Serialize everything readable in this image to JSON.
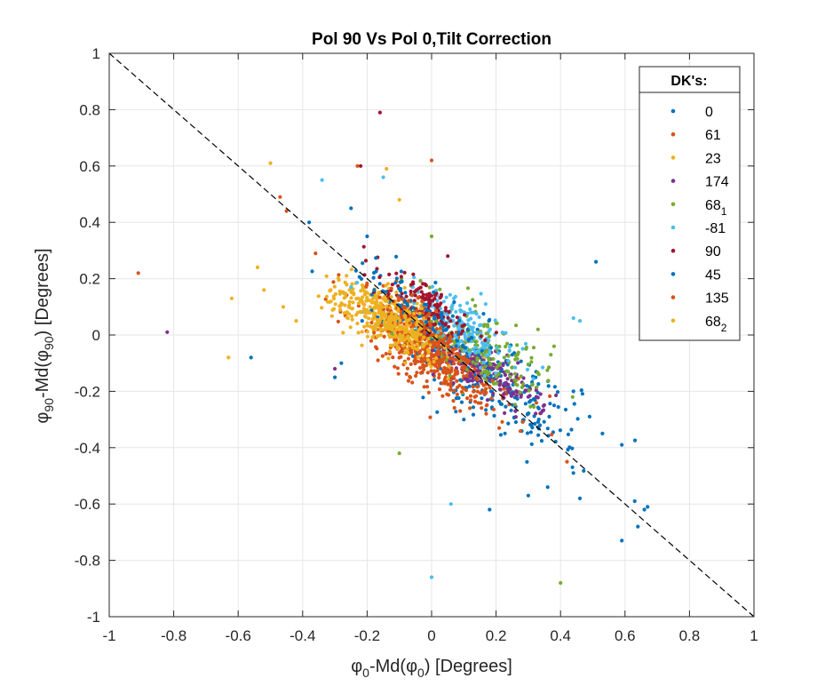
{
  "chart_data": {
    "type": "scatter",
    "title": "Pol 90 Vs Pol 0,Tilt Correction",
    "xlabel": {
      "base": "φ",
      "sub": "0",
      "rest": "-Md(φ",
      "sub2": "0",
      "tail": ") [Degrees]"
    },
    "ylabel": {
      "base": "φ",
      "sub": "90",
      "rest": "-Md(φ",
      "sub2": "90",
      "tail": ") [Degrees]"
    },
    "xlim": [
      -1,
      1
    ],
    "ylim": [
      -1,
      1
    ],
    "xticks": [
      "-1",
      "-0.8",
      "-0.6",
      "-0.4",
      "-0.2",
      "0",
      "0.2",
      "0.4",
      "0.6",
      "0.8",
      "1"
    ],
    "yticks": [
      "-1",
      "-0.8",
      "-0.6",
      "-0.4",
      "-0.2",
      "0",
      "0.2",
      "0.4",
      "0.6",
      "0.8",
      "1"
    ],
    "grid": true,
    "reference_line": {
      "style": "dashed",
      "color": "#000000",
      "x": [
        -1,
        1
      ],
      "y": [
        1,
        -1
      ]
    },
    "legend": {
      "title": "DK's:",
      "placement": "top-right",
      "entries": [
        {
          "label": "0",
          "sub": "",
          "color": "#0072BD"
        },
        {
          "label": "61",
          "sub": "",
          "color": "#D95319"
        },
        {
          "label": "23",
          "sub": "",
          "color": "#EDB120"
        },
        {
          "label": "174",
          "sub": "",
          "color": "#7E2F8E"
        },
        {
          "label": "68",
          "sub": "1",
          "color": "#77AC30"
        },
        {
          "label": "-81",
          "sub": "",
          "color": "#4DBEEE"
        },
        {
          "label": "90",
          "sub": "",
          "color": "#A2142F"
        },
        {
          "label": "45",
          "sub": "",
          "color": "#0072BD"
        },
        {
          "label": "135",
          "sub": "",
          "color": "#D95319"
        },
        {
          "label": "68",
          "sub": "2",
          "color": "#EDB120"
        }
      ]
    },
    "series": [
      {
        "color": "#0072BD",
        "center": [
          0.18,
          -0.16
        ],
        "spread": [
          0.14,
          0.12
        ],
        "count": 260,
        "points": [
          [
            0.59,
            -0.73
          ],
          [
            0.66,
            -0.62
          ],
          [
            0.63,
            -0.59
          ],
          [
            0.67,
            -0.61
          ],
          [
            0.64,
            -0.68
          ],
          [
            0.51,
            0.26
          ],
          [
            -0.56,
            -0.08
          ],
          [
            0.44,
            -0.2
          ],
          [
            0.49,
            -0.29
          ],
          [
            0.53,
            -0.35
          ],
          [
            0.59,
            -0.39
          ],
          [
            0.44,
            -0.49
          ],
          [
            0.46,
            -0.58
          ],
          [
            0.36,
            -0.54
          ],
          [
            0.18,
            -0.62
          ],
          [
            0.3,
            -0.57
          ],
          [
            -0.25,
            0.45
          ],
          [
            -0.3,
            -0.15
          ],
          [
            -0.38,
            0.4
          ]
        ]
      },
      {
        "color": "#D95319",
        "center": [
          0.02,
          -0.08
        ],
        "spread": [
          0.12,
          0.1
        ],
        "count": 360,
        "points": [
          [
            -0.91,
            0.22
          ],
          [
            0.0,
            0.62
          ],
          [
            -0.23,
            0.6
          ],
          [
            0.42,
            -0.45
          ],
          [
            -0.36,
            0.29
          ]
        ]
      },
      {
        "color": "#EDB120",
        "center": [
          -0.12,
          0.05
        ],
        "spread": [
          0.1,
          0.07
        ],
        "count": 380,
        "points": [
          [
            -0.5,
            0.61
          ],
          [
            -0.14,
            0.59
          ],
          [
            -0.62,
            0.13
          ],
          [
            -0.63,
            -0.08
          ],
          [
            -0.52,
            0.16
          ],
          [
            -0.54,
            0.24
          ],
          [
            -0.46,
            0.1
          ],
          [
            0.78,
            -0.01
          ],
          [
            -0.42,
            0.05
          ]
        ]
      },
      {
        "color": "#7E2F8E",
        "center": [
          0.18,
          -0.14
        ],
        "spread": [
          0.08,
          0.06
        ],
        "count": 150,
        "points": [
          [
            -0.82,
            0.01
          ],
          [
            0.26,
            -0.27
          ],
          [
            0.3,
            -0.22
          ],
          [
            -0.3,
            -0.12
          ]
        ]
      },
      {
        "color": "#77AC30",
        "center": [
          0.15,
          -0.05
        ],
        "spread": [
          0.11,
          0.09
        ],
        "count": 200,
        "points": [
          [
            0.4,
            -0.88
          ],
          [
            -0.1,
            -0.42
          ],
          [
            0.0,
            0.35
          ],
          [
            0.33,
            0.02
          ],
          [
            0.37,
            -0.07
          ],
          [
            0.38,
            -0.04
          ]
        ]
      },
      {
        "color": "#4DBEEE",
        "center": [
          0.1,
          0.02
        ],
        "spread": [
          0.08,
          0.07
        ],
        "count": 180,
        "points": [
          [
            -0.34,
            0.55
          ],
          [
            0.0,
            -0.86
          ],
          [
            0.06,
            -0.6
          ],
          [
            -0.15,
            0.56
          ],
          [
            0.44,
            0.06
          ],
          [
            0.46,
            0.05
          ],
          [
            -0.25,
            0.17
          ]
        ]
      },
      {
        "color": "#A2142F",
        "center": [
          -0.02,
          0.1
        ],
        "spread": [
          0.07,
          0.07
        ],
        "count": 140,
        "points": [
          [
            -0.16,
            0.79
          ],
          [
            -0.22,
            0.6
          ],
          [
            -0.02,
            0.18
          ],
          [
            0.05,
            0.28
          ]
        ]
      },
      {
        "color": "#0072BD",
        "center": [
          -0.05,
          0.08
        ],
        "spread": [
          0.1,
          0.09
        ],
        "count": 110,
        "points": [
          [
            -0.2,
            0.35
          ],
          [
            -0.28,
            -0.1
          ],
          [
            0.1,
            -0.3
          ]
        ]
      },
      {
        "color": "#D95319",
        "center": [
          -0.02,
          -0.02
        ],
        "spread": [
          0.08,
          0.09
        ],
        "count": 200,
        "points": [
          [
            -0.45,
            0.44
          ],
          [
            -0.47,
            0.49
          ]
        ]
      },
      {
        "color": "#EDB120",
        "center": [
          -0.1,
          0.03
        ],
        "spread": [
          0.07,
          0.06
        ],
        "count": 150,
        "points": [
          [
            -0.1,
            0.48
          ],
          [
            -0.2,
            0.15
          ]
        ]
      }
    ]
  }
}
